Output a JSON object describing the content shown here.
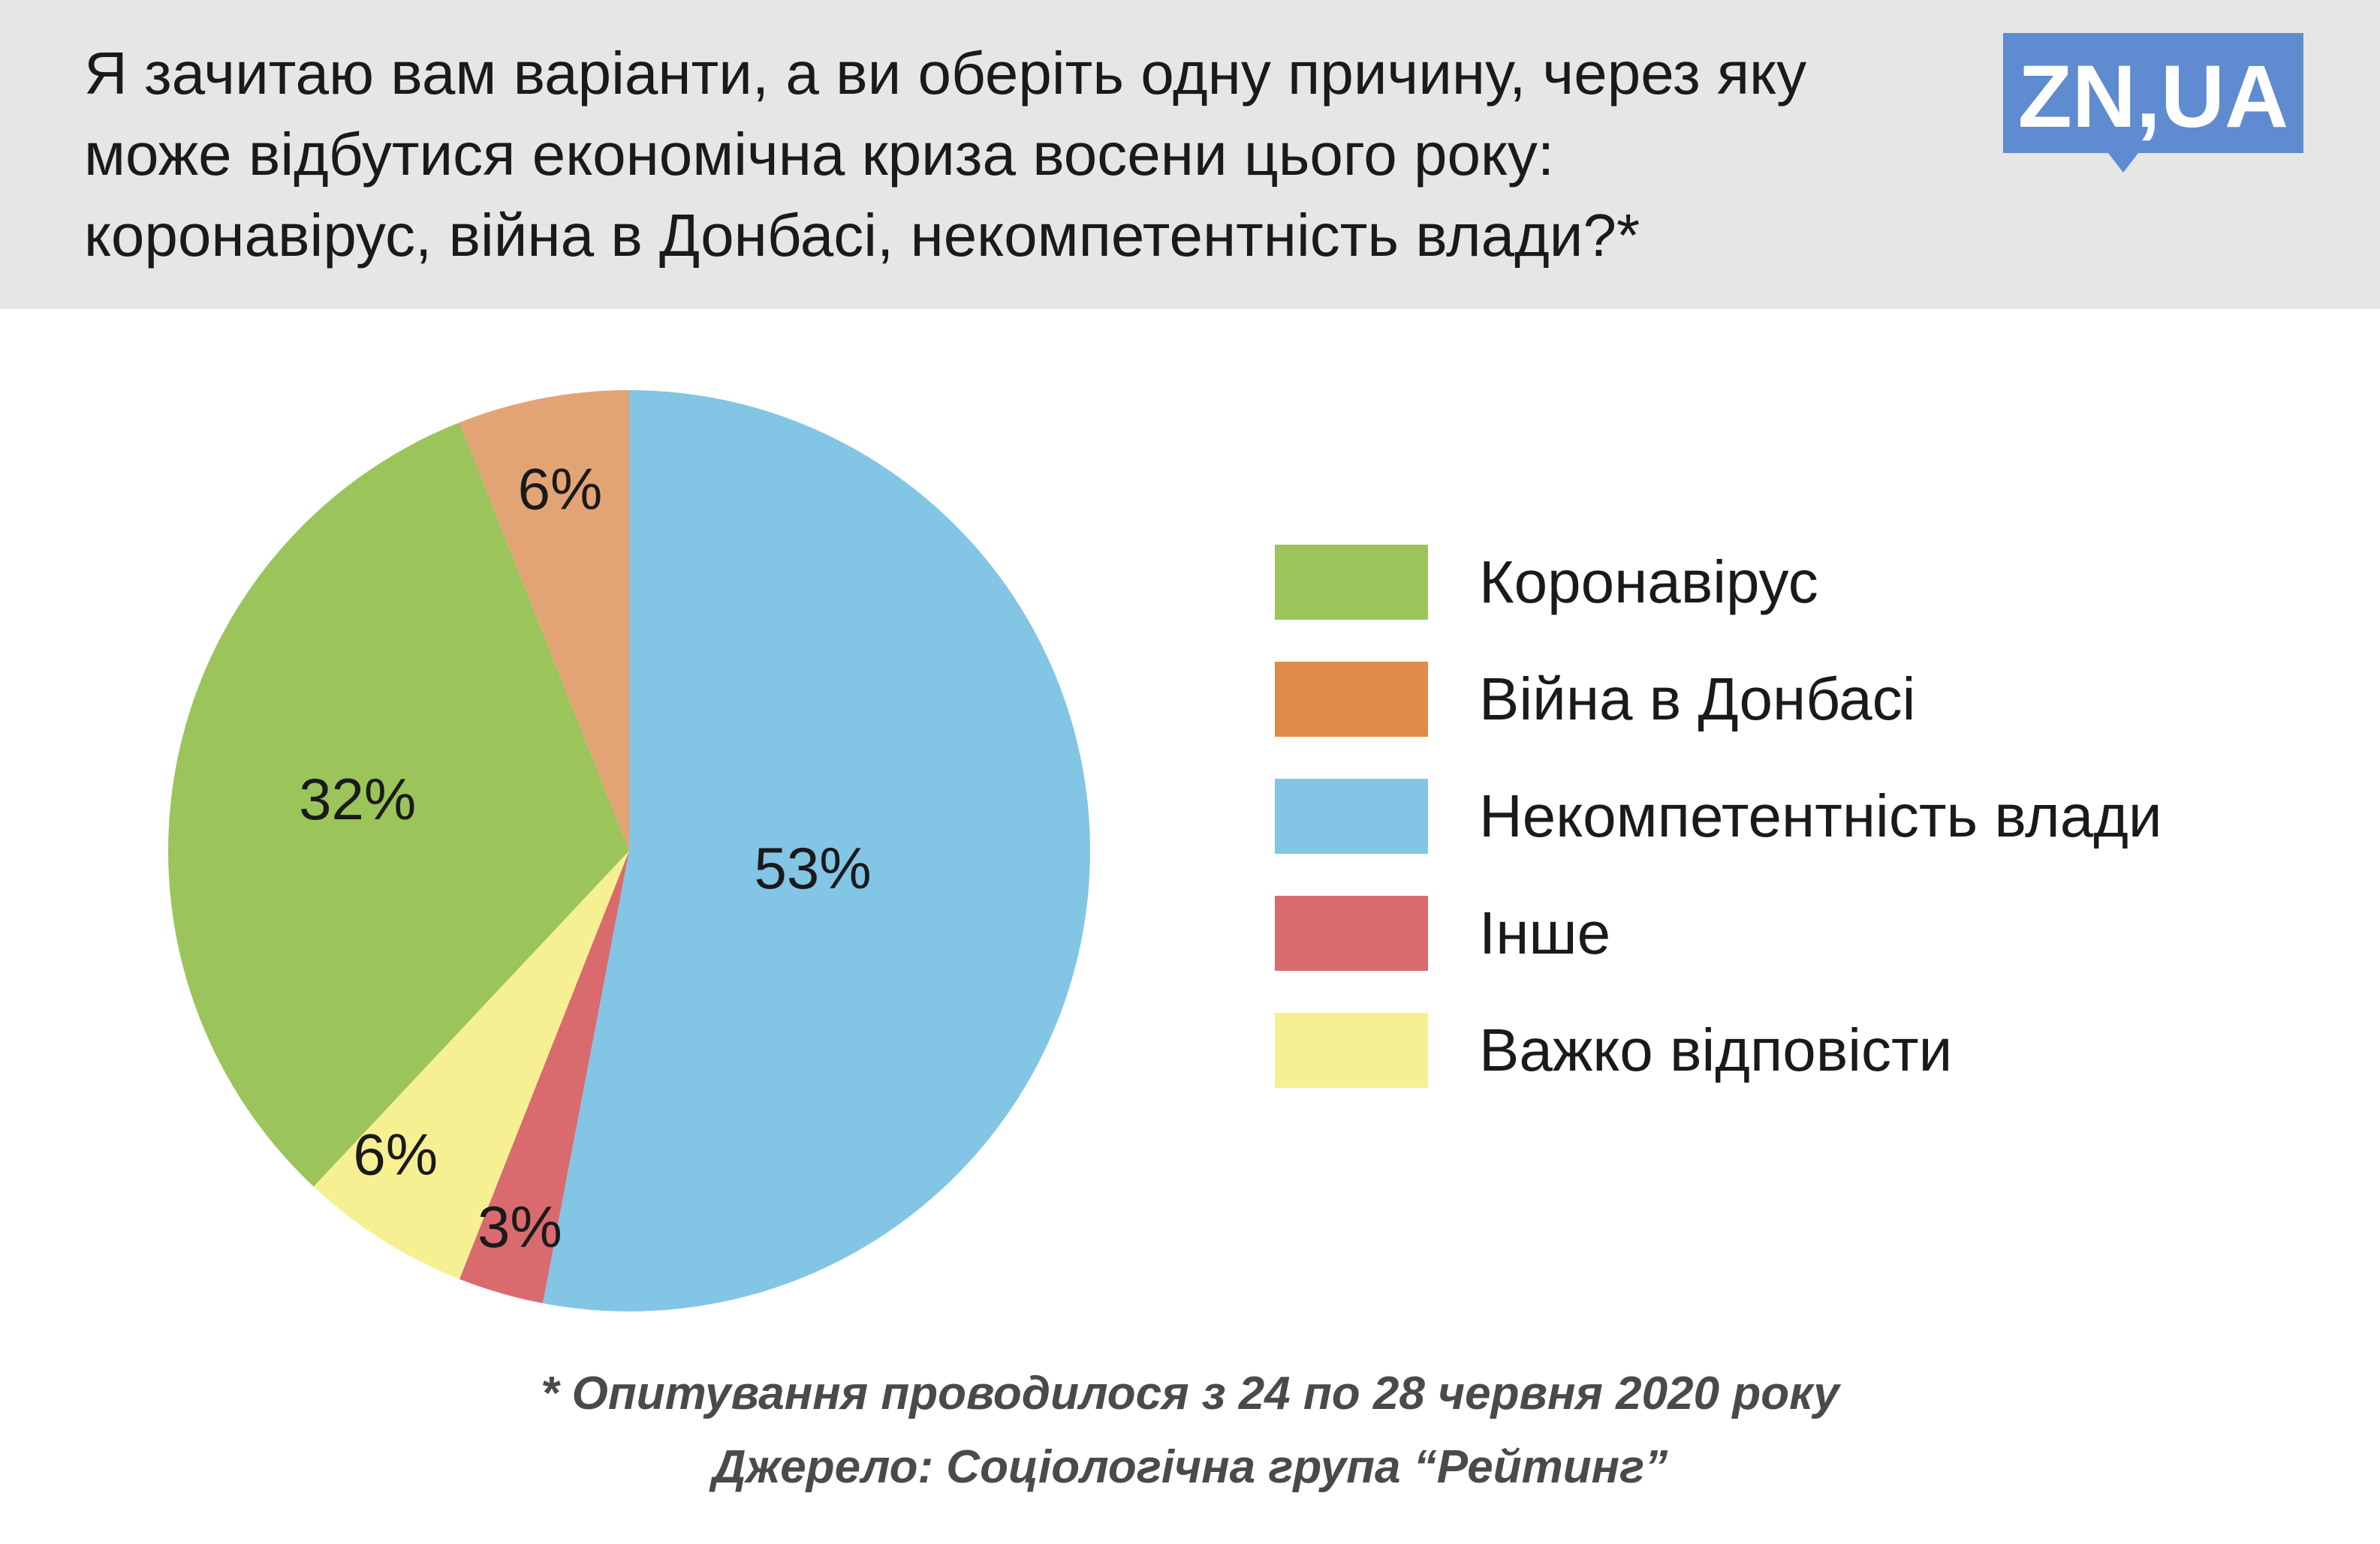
{
  "header": {
    "question_lines": [
      "Я зачитаю вам варіанти, а ви оберіть одну причину, через яку",
      "може відбутися економічна криза восени цього року:",
      "коронавірус, війна в Донбасі, некомпетентність влади?*"
    ],
    "logo_text": "ZN,UA",
    "logo_color": "#5f8bd0"
  },
  "chart_data": {
    "type": "pie",
    "title": "",
    "start_angle_deg": 0,
    "direction": "clockwise",
    "slices": [
      {
        "label": "Некомпетентність влади",
        "value": 53,
        "display": "53%",
        "color": "#82c5e4"
      },
      {
        "label": "Інше",
        "value": 3,
        "display": "3%",
        "color": "#d96b6f"
      },
      {
        "label": "Важко відповісти",
        "value": 6,
        "display": "6%",
        "color": "#f6f093"
      },
      {
        "label": "Коронавірус",
        "value": 32,
        "display": "32%",
        "color": "#9bc45b"
      },
      {
        "label": "Війна в Донбасі",
        "value": 6,
        "display": "6%",
        "color": "#e3a475"
      }
    ],
    "legend": [
      {
        "label": "Коронавірус",
        "color": "#9bc45b"
      },
      {
        "label": "Війна в Донбасі",
        "color": "#e08b47"
      },
      {
        "label": "Некомпетентність влади",
        "color": "#82c5e4"
      },
      {
        "label": "Інше",
        "color": "#d96b6f"
      },
      {
        "label": "Важко відповісти",
        "color": "#f6f093"
      }
    ],
    "legend_position": "right"
  },
  "footer": {
    "note": "* Опитування проводилося з 24 по 28 червня 2020 року",
    "source": "Джерело: Соціологічна група “Рейтинг”"
  }
}
